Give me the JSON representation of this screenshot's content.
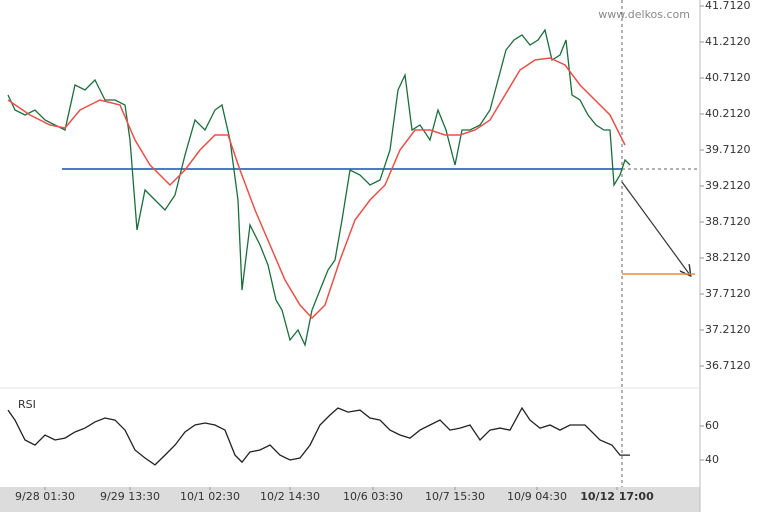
{
  "watermark": "www.delkos.com",
  "chart_data": [
    {
      "type": "line",
      "xlim": [
        0,
        692
      ],
      "ylim": [
        36.448,
        41.795
      ],
      "yticks": [
        {
          "value": 41.712,
          "label": "41.7120"
        },
        {
          "value": 41.212,
          "label": "41.2120"
        },
        {
          "value": 40.712,
          "label": "40.7120"
        },
        {
          "value": 40.212,
          "label": "40.2120"
        },
        {
          "value": 39.712,
          "label": "39.7120"
        },
        {
          "value": 39.212,
          "label": "39.2120"
        },
        {
          "value": 38.712,
          "label": "38.7120"
        },
        {
          "value": 38.212,
          "label": "38.2120"
        },
        {
          "value": 37.712,
          "label": "37.7120"
        },
        {
          "value": 37.212,
          "label": "37.2120"
        },
        {
          "value": 36.712,
          "label": "36.7120"
        }
      ],
      "hlines": [
        {
          "value": 39.448,
          "color": "#4a7cc7"
        },
        {
          "value": 37.989,
          "color": "#f0883c"
        }
      ],
      "series": [
        {
          "color": "#1b6e3c",
          "x": [
            0,
            7,
            17,
            27,
            37,
            47,
            57,
            67,
            77,
            87,
            97,
            107,
            117,
            122,
            129,
            137,
            147,
            157,
            167,
            177,
            187,
            197,
            207,
            214,
            222,
            230,
            234,
            242,
            252,
            260,
            268,
            274,
            282,
            290,
            297,
            304,
            312,
            320,
            327,
            334,
            342,
            352,
            362,
            372,
            382,
            390,
            397,
            404,
            412,
            422,
            430,
            438,
            447,
            454,
            462,
            472,
            482,
            490,
            498,
            506,
            514,
            522,
            530,
            537,
            544,
            552,
            558,
            564,
            572,
            580,
            588,
            596,
            602,
            606,
            612,
            617,
            622
          ],
          "values": [
            40.476,
            40.267,
            40.198,
            40.267,
            40.128,
            40.059,
            39.989,
            40.614,
            40.545,
            40.684,
            40.406,
            40.406,
            40.337,
            39.851,
            38.601,
            39.156,
            39.017,
            38.878,
            39.087,
            39.642,
            40.128,
            39.989,
            40.267,
            40.337,
            39.851,
            39.017,
            37.767,
            38.67,
            38.392,
            38.114,
            37.628,
            37.489,
            37.073,
            37.212,
            37.003,
            37.489,
            37.767,
            38.045,
            38.184,
            38.739,
            39.434,
            39.364,
            39.226,
            39.295,
            39.712,
            40.545,
            40.753,
            39.989,
            40.059,
            39.851,
            40.267,
            39.989,
            39.503,
            39.989,
            39.989,
            40.059,
            40.267,
            40.684,
            41.101,
            41.239,
            41.309,
            41.17,
            41.239,
            41.378,
            40.962,
            41.031,
            41.239,
            40.476,
            40.406,
            40.198,
            40.059,
            39.989,
            39.989,
            39.226,
            39.364,
            39.573,
            39.503
          ]
        },
        {
          "color": "#e8504a",
          "x": [
            0,
            22,
            42,
            57,
            72,
            92,
            112,
            127,
            142,
            162,
            177,
            192,
            207,
            220,
            232,
            247,
            262,
            277,
            292,
            304,
            317,
            332,
            347,
            362,
            377,
            392,
            407,
            422,
            437,
            452,
            467,
            482,
            497,
            512,
            527,
            542,
            557,
            572,
            587,
            602,
            617
          ],
          "values": [
            40.406,
            40.198,
            40.059,
            40.017,
            40.267,
            40.406,
            40.337,
            39.851,
            39.503,
            39.226,
            39.434,
            39.712,
            39.92,
            39.92,
            39.434,
            38.878,
            38.392,
            37.906,
            37.559,
            37.378,
            37.559,
            38.184,
            38.739,
            39.017,
            39.226,
            39.712,
            39.989,
            39.989,
            39.92,
            39.92,
            39.989,
            40.128,
            40.476,
            40.823,
            40.962,
            40.989,
            40.892,
            40.614,
            40.406,
            40.198,
            39.781
          ]
        }
      ]
    },
    {
      "type": "line",
      "title": "RSI",
      "xlim": [
        0,
        692
      ],
      "ylim": [
        25.3,
        81.2
      ],
      "yticks": [
        60,
        40
      ],
      "xticks": [
        {
          "value": 37,
          "label": "9/28 01:30"
        },
        {
          "value": 122,
          "label": "9/29 13:30"
        },
        {
          "value": 202,
          "label": "10/1 02:30"
        },
        {
          "value": 282,
          "label": "10/2 14:30"
        },
        {
          "value": 365,
          "label": "10/6 03:30"
        },
        {
          "value": 447,
          "label": "10/7 15:30"
        },
        {
          "value": 529,
          "label": "10/9 04:30"
        },
        {
          "value": 609,
          "label": "10/12 17:00"
        }
      ],
      "series": [
        {
          "color": "#222222",
          "x": [
            0,
            7,
            17,
            27,
            37,
            47,
            57,
            67,
            77,
            87,
            97,
            107,
            117,
            127,
            137,
            147,
            157,
            167,
            177,
            187,
            197,
            207,
            217,
            227,
            234,
            242,
            252,
            262,
            272,
            282,
            292,
            302,
            312,
            322,
            330,
            340,
            352,
            362,
            372,
            382,
            392,
            402,
            412,
            422,
            432,
            442,
            452,
            462,
            472,
            482,
            492,
            502,
            514,
            522,
            532,
            542,
            552,
            562,
            577,
            592,
            604,
            612,
            622
          ],
          "values": [
            69.4,
            63.5,
            51.8,
            48.8,
            54.7,
            51.8,
            52.9,
            56.5,
            58.8,
            62.4,
            64.7,
            63.5,
            57.6,
            45.9,
            41.2,
            37.1,
            42.9,
            48.8,
            56.5,
            60.6,
            61.8,
            60.6,
            57.6,
            42.9,
            38.8,
            44.7,
            45.9,
            48.8,
            42.9,
            40.0,
            41.2,
            48.8,
            60.6,
            66.5,
            70.6,
            68.2,
            69.4,
            64.7,
            63.5,
            57.6,
            54.7,
            52.9,
            57.6,
            60.6,
            63.5,
            57.6,
            58.8,
            60.6,
            51.8,
            57.6,
            58.8,
            57.6,
            70.6,
            63.5,
            58.8,
            60.6,
            57.6,
            60.6,
            60.6,
            51.8,
            48.8,
            42.9,
            42.9
          ]
        }
      ]
    }
  ]
}
